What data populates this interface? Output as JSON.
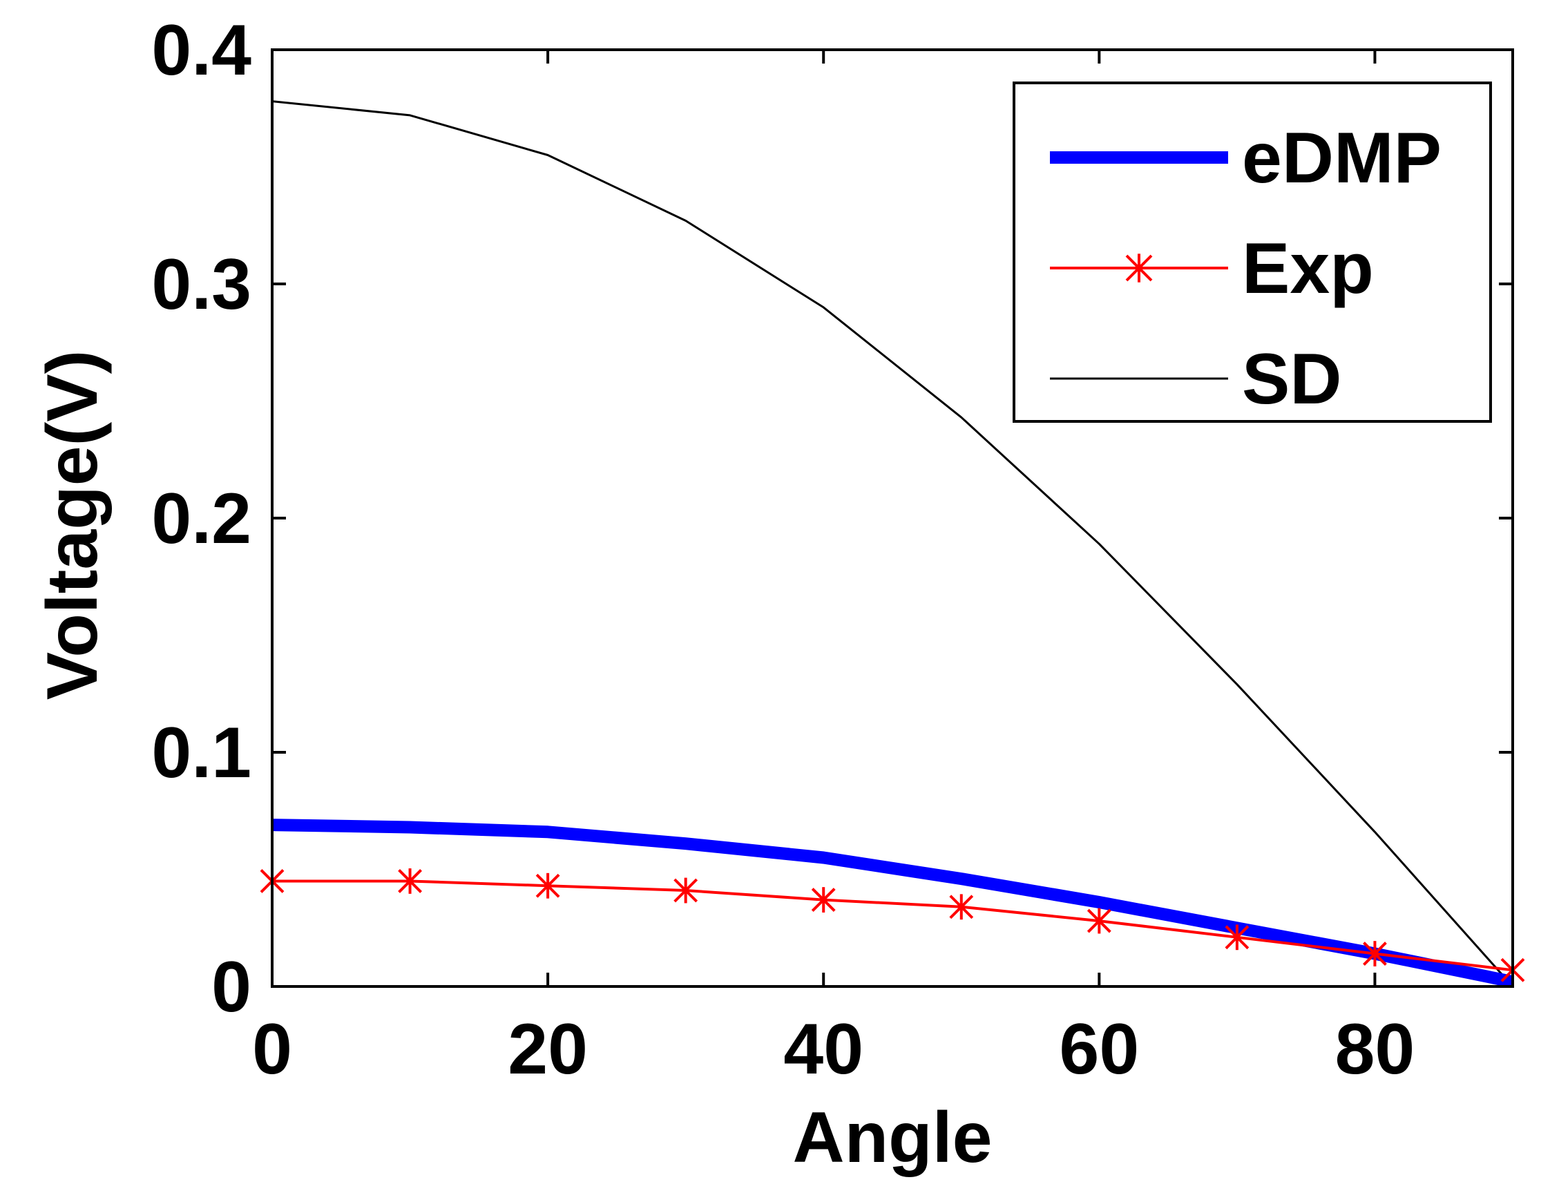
{
  "chart_data": {
    "type": "line",
    "title": "",
    "xlabel": "Angle",
    "ylabel": "Voltage(V)",
    "xlim": [
      0,
      90
    ],
    "ylim": [
      0,
      0.4
    ],
    "xticks": [
      0,
      20,
      40,
      60,
      80
    ],
    "yticks": [
      0,
      0.1,
      0.2,
      0.3,
      0.4
    ],
    "xtick_labels": [
      "0",
      "20",
      "40",
      "60",
      "80"
    ],
    "ytick_labels": [
      "0",
      "0.1",
      "0.2",
      "0.3",
      "0.4"
    ],
    "grid": false,
    "legend_position": "top-right",
    "series": [
      {
        "name": "eDMP",
        "color": "#0000ff",
        "style": "thick-line",
        "marker": "none",
        "x": [
          0,
          10,
          20,
          30,
          40,
          50,
          60,
          70,
          80,
          90
        ],
        "y": [
          0.069,
          0.068,
          0.066,
          0.061,
          0.055,
          0.046,
          0.036,
          0.025,
          0.014,
          0.002
        ]
      },
      {
        "name": "Exp",
        "color": "#ff0000",
        "style": "line",
        "marker": "x-star",
        "x": [
          0,
          10,
          20,
          30,
          40,
          50,
          60,
          70,
          80,
          90
        ],
        "y": [
          0.045,
          0.045,
          0.043,
          0.041,
          0.037,
          0.034,
          0.028,
          0.021,
          0.014,
          0.007
        ]
      },
      {
        "name": "SD",
        "color": "#000000",
        "style": "thin-line",
        "marker": "none",
        "x": [
          0,
          10,
          20,
          30,
          40,
          50,
          60,
          70,
          80,
          90
        ],
        "y": [
          0.378,
          0.372,
          0.355,
          0.327,
          0.29,
          0.243,
          0.189,
          0.129,
          0.066,
          0.0
        ]
      }
    ]
  }
}
